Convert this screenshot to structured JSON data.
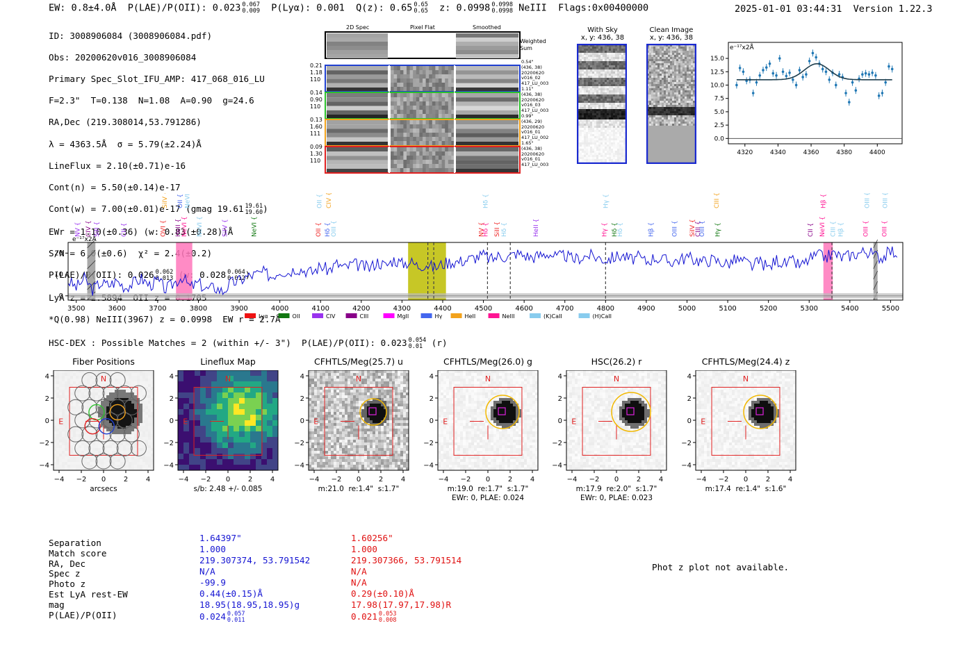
{
  "header": {
    "left": "EW: 0.8±4.0Å  P(LAE)/P(OII): 0.023",
    "plae_hi": "0.067",
    "plae_lo": "0.009",
    "plya": "P(Lyα): 0.001  Q(z): 0.65",
    "qz_hi": "0.65",
    "qz_lo": "0.65",
    "z": "z: 0.0998",
    "z_hi": "0.0998",
    "z_lo": "0.0998",
    "tail": "NeIII  Flags:0x00400000",
    "right": "2025-01-01 03:44:31  Version 1.22.3"
  },
  "info": {
    "l1": "ID: 3008906084 (3008906084.pdf)",
    "l2": "Obs: 20200620v016_3008906084",
    "l3": "Primary Spec_Slot_IFU_AMP: 417_068_016_LU",
    "l4": "F=2.3\"  T=0.138  N=1.08  A=0.90  g=24.6",
    "l5": "RA,Dec (219.308014,53.791286)",
    "l6": "λ = 4363.5Å  σ = 5.79(±2.24)Å",
    "l7": "LineFlux = 2.10(±0.71)e-16",
    "l8": "Cont(n) = 5.50(±0.14)e-17",
    "l9": "Cont(w) = 7.00(±0.01)e-17 (gmag 19.61",
    "l9_hi": "19.61",
    "l9_lo": "19.60",
    "l10": "EWr = 1.10(±0.36) (w: 0.83(±0.28))Å",
    "l11": "S/N = 6.0(±0.6)  χ² = 2.4(±0.2)",
    "l12": "P(LAE)/P(OII): 0.026",
    "l12_hi": "0.062",
    "l12_lo": "0.013",
    "l12b": "(w: 0.028",
    "l12b_hi": "0.064",
    "l12b_lo": "0.012",
    "l13": "LyA z = 2.5894  OII z = 0.1705",
    "l14": "*Q(0.98) NeIII(3967) z = 0.0998  EW r = 2.7Å"
  },
  "spec2d": {
    "cols": [
      "2D Spec",
      "Pixel Flat",
      "Smoothed"
    ],
    "weighted": "Weighted Sum",
    "rows": [
      {
        "left": [
          "0.21",
          "1.18",
          "110"
        ],
        "right": [
          "0.54\"",
          "(436, 38)",
          "20200620",
          "v016_02",
          "417_LU_003"
        ],
        "color": "#1f3fd0"
      },
      {
        "left": [
          "0.14",
          "0.90",
          "110"
        ],
        "right": [
          "1.11\"",
          "(436, 38)",
          "20200620",
          "v016_03",
          "417_LU_003"
        ],
        "color": "#2cc02c"
      },
      {
        "left": [
          "0.13",
          "1.60",
          "111"
        ],
        "right": [
          "0.99\"",
          "(436, 29)",
          "20200620",
          "v016_01",
          "417_LU_002"
        ],
        "color": "#f2a21c"
      },
      {
        "left": [
          "0.09",
          "1.30",
          "110"
        ],
        "right": [
          "1.65\"",
          "(436, 38)",
          "20200620",
          "v016_01",
          "417_LU_003"
        ],
        "color": "#e02020"
      }
    ]
  },
  "cutouts": {
    "withsky_title": "With Sky",
    "withsky_sub": "x, y: 436, 38",
    "clean_title": "Clean Image",
    "clean_sub": "x, y: 436, 38"
  },
  "chart_data": [
    {
      "type": "scatter",
      "title": "",
      "unit_label": "e⁻¹⁷x2Å",
      "x": [
        4315,
        4317,
        4319,
        4321,
        4323,
        4325,
        4327,
        4329,
        4331,
        4333,
        4335,
        4337,
        4339,
        4341,
        4343,
        4345,
        4347,
        4349,
        4351,
        4353,
        4355,
        4357,
        4359,
        4361,
        4363,
        4365,
        4367,
        4369,
        4371,
        4373,
        4375,
        4377,
        4379,
        4381,
        4383,
        4385,
        4387,
        4389,
        4391,
        4393,
        4395,
        4397,
        4399,
        4401,
        4403,
        4405,
        4407,
        4409
      ],
      "y": [
        10.0,
        13.2,
        12.5,
        10.8,
        11.0,
        8.5,
        10.5,
        11.8,
        12.8,
        13.3,
        14.0,
        12.2,
        11.8,
        15.0,
        12.5,
        11.7,
        12.3,
        11.0,
        10.0,
        12.8,
        11.5,
        12.0,
        14.5,
        16.0,
        15.2,
        14.0,
        13.0,
        12.5,
        11.0,
        12.3,
        10.0,
        12.0,
        11.5,
        8.5,
        6.8,
        10.5,
        9.0,
        11.2,
        12.0,
        12.2,
        12.0,
        12.3,
        11.8,
        8.0,
        8.5,
        10.5,
        13.5,
        13.0
      ],
      "fit_baseline": 11.0,
      "fit_amp": 3.0,
      "fit_mu": 4363.5,
      "fit_sigma": 5.79,
      "xlim": [
        4310,
        4415
      ],
      "ylim": [
        -1.0,
        18.0
      ],
      "xticks": [
        "4320",
        "4340",
        "4360",
        "4380",
        "4400"
      ],
      "yticks": [
        "0.0",
        "2.5",
        "5.0",
        "7.5",
        "10.0",
        "12.5",
        "15.0"
      ]
    },
    {
      "type": "line",
      "unit_label": "e⁻¹⁷x2Å",
      "xlim": [
        3480,
        5530
      ],
      "ylim": [
        -2,
        25
      ],
      "xticks": [
        "3500",
        "3600",
        "3700",
        "3800",
        "3900",
        "4000",
        "4100",
        "4200",
        "4300",
        "4400",
        "4500",
        "4600",
        "4700",
        "4800",
        "4900",
        "5000",
        "5100",
        "5200",
        "5300",
        "5400",
        "5500"
      ],
      "yticks": [
        "0",
        "10",
        "20"
      ],
      "x": [
        3480,
        3500,
        3520,
        3540,
        3560,
        3580,
        3600,
        3620,
        3640,
        3660,
        3680,
        3700,
        3720,
        3740,
        3760,
        3780,
        3800,
        3820,
        3840,
        3860,
        3880,
        3900,
        3920,
        3940,
        3960,
        3980,
        4000,
        4020,
        4040,
        4060,
        4080,
        4100,
        4120,
        4140,
        4160,
        4180,
        4200,
        4220,
        4240,
        4260,
        4280,
        4300,
        4320,
        4340,
        4360,
        4380,
        4400,
        4420,
        4440,
        4460,
        4480,
        4500,
        4520,
        4540,
        4560,
        4580,
        4600,
        4620,
        4640,
        4660,
        4680,
        4700,
        4720,
        4740,
        4760,
        4780,
        4800,
        4820,
        4840,
        4860,
        4880,
        4900,
        4920,
        4940,
        4960,
        4980,
        5000,
        5020,
        5040,
        5060,
        5080,
        5100,
        5120,
        5140,
        5160,
        5180,
        5200,
        5220,
        5240,
        5260,
        5280,
        5300,
        5320,
        5340,
        5360,
        5380,
        5400,
        5420,
        5440,
        5460,
        5480,
        5500,
        5520
      ],
      "y": [
        7,
        4,
        8,
        3,
        6,
        5,
        7,
        4,
        6,
        8,
        5,
        7,
        3,
        6,
        9,
        4,
        6,
        3,
        4,
        2,
        6,
        7,
        9,
        10,
        11,
        9,
        12,
        11,
        13,
        12,
        11,
        14,
        12,
        15,
        13,
        15,
        14,
        13,
        16,
        14,
        17,
        15,
        16,
        14,
        15,
        13,
        15,
        16,
        16,
        17,
        18,
        19,
        17,
        19,
        18,
        20,
        19,
        18,
        19,
        20,
        18,
        19,
        17,
        18,
        19,
        18,
        17,
        18,
        19,
        17,
        18,
        16,
        18,
        17,
        16,
        17,
        18,
        17,
        16,
        17,
        16,
        15,
        17,
        16,
        14,
        16,
        13,
        17,
        15,
        16,
        14,
        17,
        19,
        18,
        20,
        18,
        19,
        20,
        21,
        19,
        18,
        21,
        20
      ],
      "noise_level": 1.2,
      "shaded_regions": [
        {
          "x0": 3745,
          "x1": 3785,
          "color": "#ff77bb"
        },
        {
          "x0": 4315,
          "x1": 4408,
          "color": "#bdbd00"
        },
        {
          "x0": 5335,
          "x1": 5358,
          "color": "#ff77bb"
        },
        {
          "x0": 3527,
          "x1": 3547,
          "color": "#999999"
        },
        {
          "x0": 5458,
          "x1": 5468,
          "color": "#999999"
        }
      ],
      "dashed_lines": [
        4363.5,
        4378,
        4510,
        4566,
        4800,
        5356
      ],
      "line_labels": [
        {
          "x": 3508,
          "name": "NV",
          "color": "#9933ee",
          "row": "low"
        },
        {
          "x": 3535,
          "name": "CIV",
          "color": "#880088",
          "row": "low"
        },
        {
          "x": 3555,
          "name": "SiII",
          "color": "#9933ee",
          "row": "low"
        },
        {
          "x": 3622,
          "name": "CII",
          "color": "#9933ee",
          "row": "low"
        },
        {
          "x": 3718,
          "name": "OVI",
          "color": "#ee2222",
          "row": "low"
        },
        {
          "x": 3722,
          "name": "SiIV",
          "color": "#f2a21c",
          "row": "high"
        },
        {
          "x": 3755,
          "name": "HeII",
          "color": "#880088",
          "row": "low"
        },
        {
          "x": 3770,
          "name": "NeVI",
          "color": "#ff1493",
          "row": "low"
        },
        {
          "x": 3760,
          "name": "OII",
          "color": "#4466ee",
          "row": "high"
        },
        {
          "x": 3778,
          "name": "NeVI",
          "color": "#88ccee",
          "row": "high"
        },
        {
          "x": 3808,
          "name": "NeVI",
          "color": "#88ccee",
          "row": "low"
        },
        {
          "x": 3870,
          "name": "SiIV",
          "color": "#9933ee",
          "row": "low"
        },
        {
          "x": 3942,
          "name": "NeVI",
          "color": "#117711",
          "row": "low"
        },
        {
          "x": 4100,
          "name": "OII",
          "color": "#ee2222",
          "row": "low"
        },
        {
          "x": 4102,
          "name": "OII",
          "color": "#88ccee",
          "row": "high"
        },
        {
          "x": 4125,
          "name": "CIV",
          "color": "#f2a21c",
          "row": "high"
        },
        {
          "x": 4122,
          "name": "Hδ",
          "color": "#4466ee",
          "row": "low"
        },
        {
          "x": 4137,
          "name": "OIII",
          "color": "#88ccee",
          "row": "low"
        },
        {
          "x": 4500,
          "name": "NV",
          "color": "#ee2222",
          "row": "low"
        },
        {
          "x": 4510,
          "name": "Hδ",
          "color": "#88ccee",
          "row": "high"
        },
        {
          "x": 4510,
          "name": "Hδ",
          "color": "#ff1493",
          "row": "low"
        },
        {
          "x": 4538,
          "name": "SiII",
          "color": "#ee2222",
          "row": "low"
        },
        {
          "x": 4555,
          "name": "Hδ",
          "color": "#88ccee",
          "row": "low"
        },
        {
          "x": 4634,
          "name": "HeII",
          "color": "#9933ee",
          "row": "low"
        },
        {
          "x": 4805,
          "name": "Hγ",
          "color": "#88ccee",
          "row": "high"
        },
        {
          "x": 4802,
          "name": "Hγ",
          "color": "#ff1493",
          "row": "low"
        },
        {
          "x": 4827,
          "name": "Hδ",
          "color": "#117711",
          "row": "low"
        },
        {
          "x": 4840,
          "name": "Hδ",
          "color": "#88ccee",
          "row": "low"
        },
        {
          "x": 4916,
          "name": "Hβ",
          "color": "#4466ee",
          "row": "low"
        },
        {
          "x": 4974,
          "name": "OIII",
          "color": "#4466ee",
          "row": "low"
        },
        {
          "x": 5018,
          "name": "SiIV",
          "color": "#ee2222",
          "row": "low"
        },
        {
          "x": 5032,
          "name": "CIII",
          "color": "#880088",
          "row": "low"
        },
        {
          "x": 5042,
          "name": "OIII",
          "color": "#4466ee",
          "row": "low"
        },
        {
          "x": 5078,
          "name": "CIII",
          "color": "#f2a21c",
          "row": "high"
        },
        {
          "x": 5080,
          "name": "Hγ",
          "color": "#117711",
          "row": "low"
        },
        {
          "x": 5308,
          "name": "CII",
          "color": "#880088",
          "row": "low"
        },
        {
          "x": 5337,
          "name": "NeVI",
          "color": "#ff1493",
          "row": "low"
        },
        {
          "x": 5340,
          "name": "Hβ",
          "color": "#ff1493",
          "row": "high"
        },
        {
          "x": 5364,
          "name": "CIII",
          "color": "#88ccee",
          "row": "low"
        },
        {
          "x": 5382,
          "name": "Hβ",
          "color": "#88ccee",
          "row": "low"
        },
        {
          "x": 5444,
          "name": "OIII",
          "color": "#ff1493",
          "row": "low"
        },
        {
          "x": 5447,
          "name": "OIII",
          "color": "#88ccee",
          "row": "high"
        },
        {
          "x": 5490,
          "name": "OIII",
          "color": "#ff1493",
          "row": "low"
        },
        {
          "x": 5492,
          "name": "OIII",
          "color": "#88ccee",
          "row": "high"
        }
      ],
      "legend": [
        {
          "name": "Lyα",
          "color": "#ee1111"
        },
        {
          "name": "OII",
          "color": "#117711"
        },
        {
          "name": "CIV",
          "color": "#9933ee"
        },
        {
          "name": "CIII",
          "color": "#880088"
        },
        {
          "name": "MgII",
          "color": "#ff00ff"
        },
        {
          "name": "Hγ",
          "color": "#4466ee"
        },
        {
          "name": "HeII",
          "color": "#f2a21c"
        },
        {
          "name": "NeIII",
          "color": "#ff1493"
        },
        {
          "name": "(K)CaII",
          "color": "#88ccee"
        },
        {
          "name": "(H)CaII",
          "color": "#88ccee"
        }
      ]
    }
  ],
  "hsc": {
    "title_main": "HSC-DEX : Possible Matches = 2 (within +/- 3\")  P(LAE)/P(OII): 0.023",
    "title_hi": "0.054",
    "title_lo": "0.01",
    "title_tail": "(r)"
  },
  "thumbs": [
    {
      "title": "Fiber Positions",
      "sub1": "arcsecs",
      "sub2": ""
    },
    {
      "title": "Lineflux Map",
      "sub1": "s/b: 2.48 +/- 0.085",
      "sub2": ""
    },
    {
      "title": "CFHTLS/Meg(25.7) u",
      "sub1": "m:21.0  re:1.4\"  s:1.7\"",
      "sub2": ""
    },
    {
      "title": "CFHTLS/Meg(26.0) g",
      "sub1": "m:19.0  re:1.7\"  s:1.7\"",
      "sub2": "EWr: 0, PLAE: 0.024"
    },
    {
      "title": "HSC(26.2) r",
      "sub1": "m:17.9  re:2.0\"  s:1.7\"",
      "sub2": "EWr: 0, PLAE: 0.023"
    },
    {
      "title": "CFHTLS/Meg(24.4) z",
      "sub1": "m:17.4  re:1.4\"  s:1.6\"",
      "sub2": ""
    }
  ],
  "axis_ticks": [
    "4",
    "2",
    "0",
    "−2",
    "−4"
  ],
  "axis_xticks": [
    "−4",
    "−2",
    "0",
    "2",
    "4"
  ],
  "compass": {
    "n": "N",
    "e": "E"
  },
  "matches": {
    "labels": [
      "Separation",
      "Match score",
      "RA, Dec",
      "Spec z",
      "Photo z",
      "Est LyA rest-EW",
      "mag",
      "P(LAE)/P(OII)"
    ],
    "m1": [
      "1.64397\"",
      "1.000",
      "219.307374, 53.791542",
      "N/A",
      "-99.9",
      "0.44(±0.15)Å",
      "18.95(18.95,18.95)g",
      "0.024"
    ],
    "m1_hi": "0.057",
    "m1_lo": "0.011",
    "m2": [
      "1.60256\"",
      "1.000",
      "219.307366, 53.791514",
      "N/A",
      "N/A",
      "0.29(±0.10)Å",
      "17.98(17.97,17.98)R",
      "0.021"
    ],
    "m2_hi": "0.053",
    "m2_lo": "0.008",
    "photz_note": "Phot z plot not available."
  }
}
